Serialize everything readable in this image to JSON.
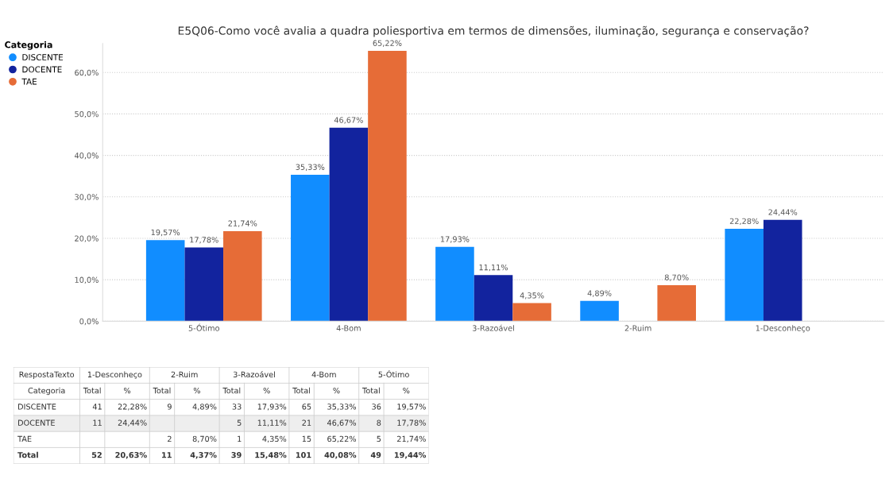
{
  "chart_data": [
    {
      "type": "bar",
      "title": "E5Q06-Como você avalia a quadra poliesportiva em termos de dimensões, iluminação, segurança e conservação?",
      "legend_title": "Categoria",
      "legend": "top left",
      "grid": "y",
      "categories": [
        "5-Ótimo",
        "4-Bom",
        "3-Razoável",
        "2-Ruim",
        "1-Desconheço"
      ],
      "ylim": [
        0,
        67
      ],
      "yticks": [
        {
          "value": 0,
          "label": "0,0%"
        },
        {
          "value": 10,
          "label": "10,0%"
        },
        {
          "value": 20,
          "label": "20,0%"
        },
        {
          "value": 30,
          "label": "30,0%"
        },
        {
          "value": 40,
          "label": "40,0%"
        },
        {
          "value": 50,
          "label": "50,0%"
        },
        {
          "value": 60,
          "label": "60,0%"
        }
      ],
      "series": [
        {
          "name": "DISCENTE",
          "color": "#118dff",
          "values": [
            19.57,
            35.33,
            17.93,
            4.89,
            22.28
          ],
          "value_labels": [
            "19,57%",
            "35,33%",
            "17,93%",
            "4,89%",
            "22,28%"
          ]
        },
        {
          "name": "DOCENTE",
          "color": "#12239e",
          "values": [
            17.78,
            46.67,
            11.11,
            null,
            24.44
          ],
          "value_labels": [
            "17,78%",
            "46,67%",
            "11,11%",
            null,
            "24,44%"
          ]
        },
        {
          "name": "TAE",
          "color": "#e66c37",
          "values": [
            21.74,
            65.22,
            4.35,
            8.7,
            null
          ],
          "value_labels": [
            "21,74%",
            "65,22%",
            "4,35%",
            "8,70%",
            null
          ]
        }
      ]
    },
    {
      "type": "other",
      "title": "RespostaTexto",
      "categories": [
        "1-Desconheço",
        "2-Ruim",
        "3-Razoável",
        "4-Bom",
        "5-Ótimo"
      ],
      "y_categories": [
        "Categoria",
        "DISCENTE",
        "DOCENTE",
        "TAE",
        "Total"
      ],
      "cell_labels": [
        [
          "Total",
          "%",
          "Total",
          "%",
          "Total",
          "%",
          "Total",
          "%",
          "Total",
          "%"
        ],
        [
          "41",
          "22,28%",
          "9",
          "4,89%",
          "33",
          "17,93%",
          "65",
          "35,33%",
          "36",
          "19,57%"
        ],
        [
          "11",
          "24,44%",
          null,
          null,
          "5",
          "11,11%",
          "21",
          "46,67%",
          "8",
          "17,78%"
        ],
        [
          null,
          null,
          "2",
          "8,70%",
          "1",
          "4,35%",
          "15",
          "65,22%",
          "5",
          "21,74%"
        ],
        [
          "52",
          "20,63%",
          "11",
          "4,37%",
          "39",
          "15,48%",
          "101",
          "40,08%",
          "49",
          "19,44%"
        ]
      ]
    }
  ]
}
